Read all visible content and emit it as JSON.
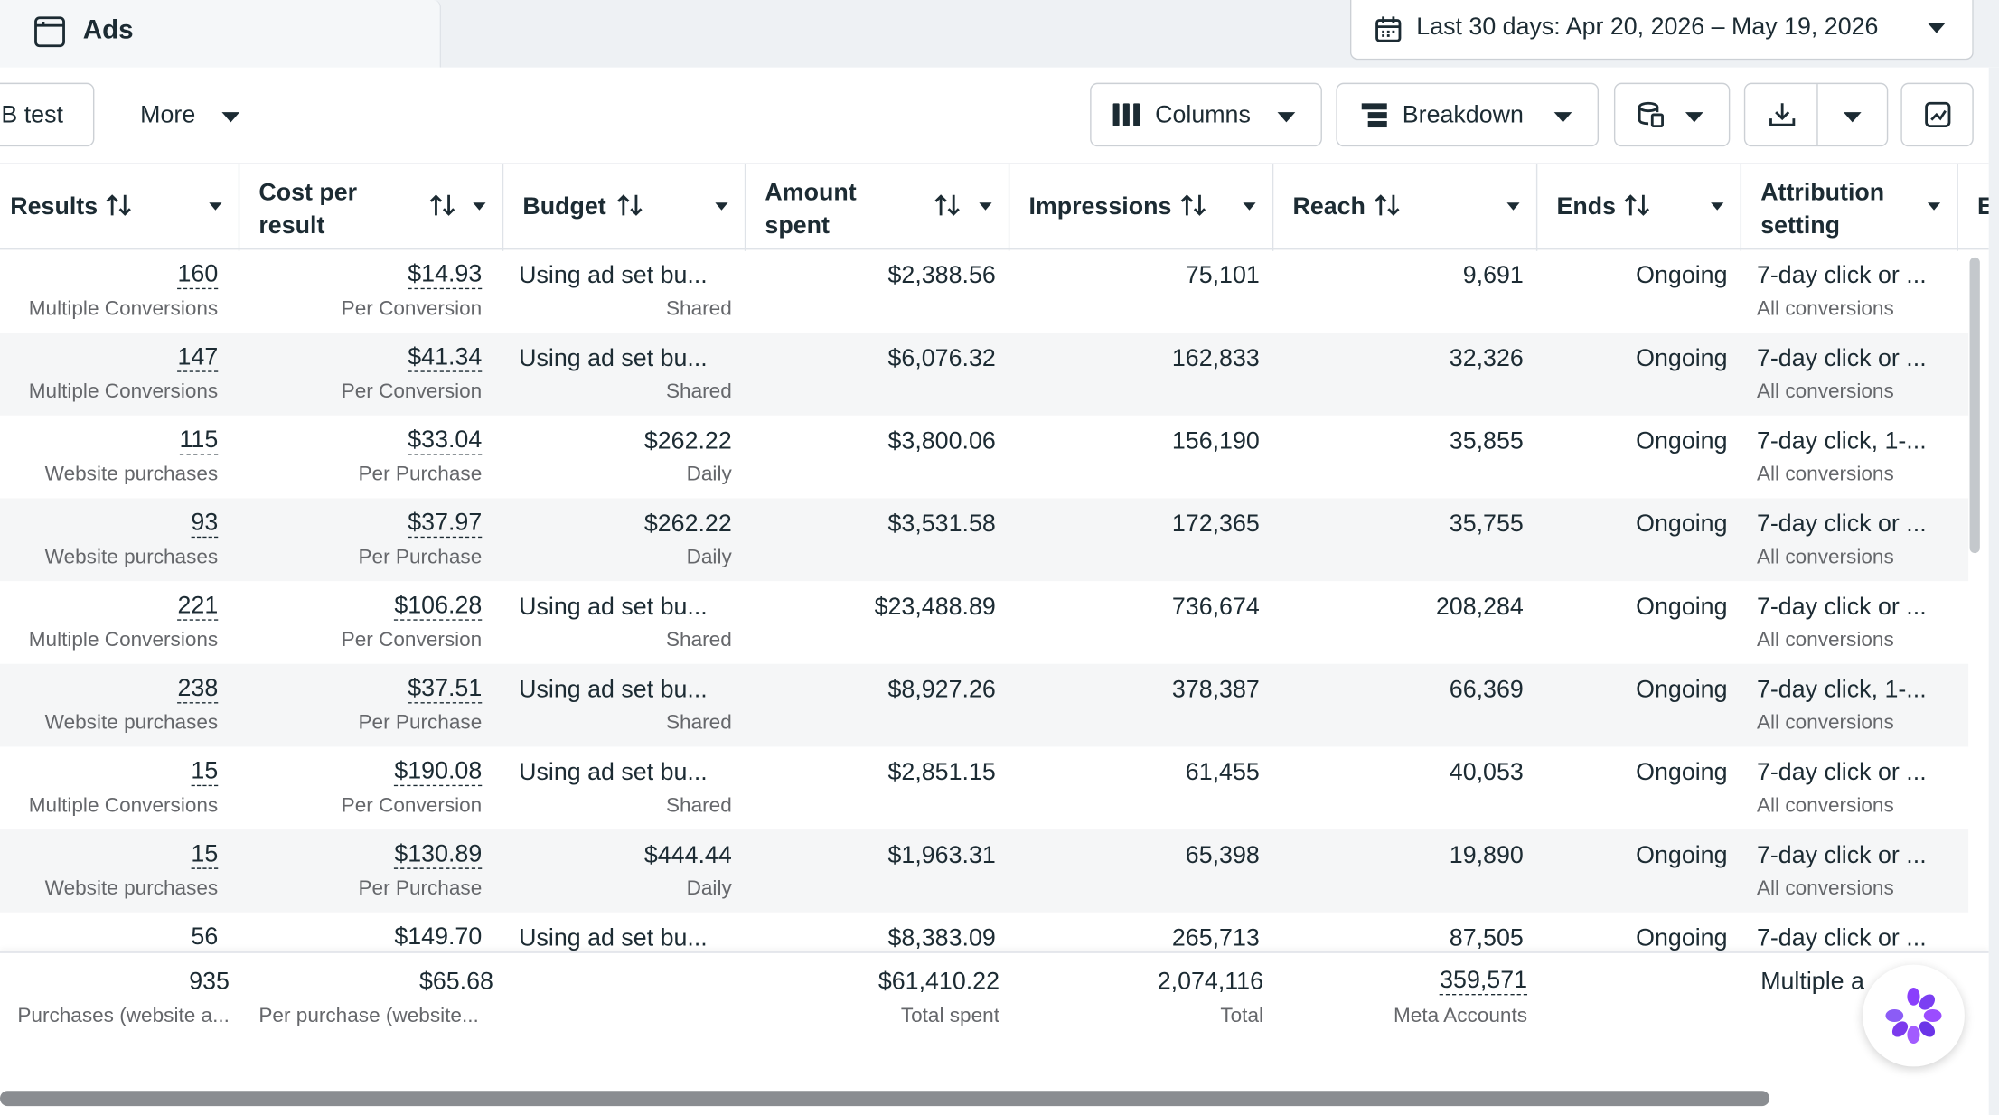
{
  "tab": {
    "label": "Ads",
    "icon": "ads-manager-icon"
  },
  "date_range": {
    "label": "Last 30 days: Apr 20, 2026 – May 19, 2026"
  },
  "toolbar": {
    "ab_test_label": "B test",
    "more_label": "More",
    "columns_label": "Columns",
    "breakdown_label": "Breakdown"
  },
  "columns": {
    "results": "Results",
    "cost_per_result_1": "Cost per",
    "cost_per_result_2": "result",
    "budget": "Budget",
    "amount_spent_1": "Amount",
    "amount_spent_2": "spent",
    "impressions": "Impressions",
    "reach": "Reach",
    "ends": "Ends",
    "attribution_1": "Attribution",
    "attribution_2": "setting",
    "next_partial": "E"
  },
  "rows": [
    {
      "results": "160",
      "results_sub": "Multiple Conversions",
      "cpr": "$14.93",
      "cpr_sub": "Per Conversion",
      "budget": "Using ad set bu...",
      "budget_sub": "Shared",
      "spent": "$2,388.56",
      "impressions": "75,101",
      "reach": "9,691",
      "ends": "Ongoing",
      "attr": "7-day click or ...",
      "attr_sub": "All conversions"
    },
    {
      "results": "147",
      "results_sub": "Multiple Conversions",
      "cpr": "$41.34",
      "cpr_sub": "Per Conversion",
      "budget": "Using ad set bu...",
      "budget_sub": "Shared",
      "spent": "$6,076.32",
      "impressions": "162,833",
      "reach": "32,326",
      "ends": "Ongoing",
      "attr": "7-day click or ...",
      "attr_sub": "All conversions"
    },
    {
      "results": "115",
      "results_sub": "Website purchases",
      "cpr": "$33.04",
      "cpr_sub": "Per Purchase",
      "budget": "$262.22",
      "budget_sub": "Daily",
      "spent": "$3,800.06",
      "impressions": "156,190",
      "reach": "35,855",
      "ends": "Ongoing",
      "attr": "7-day click, 1-...",
      "attr_sub": "All conversions"
    },
    {
      "results": "93",
      "results_sub": "Website purchases",
      "cpr": "$37.97",
      "cpr_sub": "Per Purchase",
      "budget": "$262.22",
      "budget_sub": "Daily",
      "spent": "$3,531.58",
      "impressions": "172,365",
      "reach": "35,755",
      "ends": "Ongoing",
      "attr": "7-day click or ...",
      "attr_sub": "All conversions"
    },
    {
      "results": "221",
      "results_sub": "Multiple Conversions",
      "cpr": "$106.28",
      "cpr_sub": "Per Conversion",
      "budget": "Using ad set bu...",
      "budget_sub": "Shared",
      "spent": "$23,488.89",
      "impressions": "736,674",
      "reach": "208,284",
      "ends": "Ongoing",
      "attr": "7-day click or ...",
      "attr_sub": "All conversions"
    },
    {
      "results": "238",
      "results_sub": "Website purchases",
      "cpr": "$37.51",
      "cpr_sub": "Per Purchase",
      "budget": "Using ad set bu...",
      "budget_sub": "Shared",
      "spent": "$8,927.26",
      "impressions": "378,387",
      "reach": "66,369",
      "ends": "Ongoing",
      "attr": "7-day click, 1-...",
      "attr_sub": "All conversions"
    },
    {
      "results": "15",
      "results_sub": "Multiple Conversions",
      "cpr": "$190.08",
      "cpr_sub": "Per Conversion",
      "budget": "Using ad set bu...",
      "budget_sub": "Shared",
      "spent": "$2,851.15",
      "impressions": "61,455",
      "reach": "40,053",
      "ends": "Ongoing",
      "attr": "7-day click or ...",
      "attr_sub": "All conversions"
    },
    {
      "results": "15",
      "results_sub": "Website purchases",
      "cpr": "$130.89",
      "cpr_sub": "Per Purchase",
      "budget": "$444.44",
      "budget_sub": "Daily",
      "spent": "$1,963.31",
      "impressions": "65,398",
      "reach": "19,890",
      "ends": "Ongoing",
      "attr": "7-day click or ...",
      "attr_sub": "All conversions"
    },
    {
      "results": "56",
      "results_sub": "",
      "cpr": "$149.70",
      "cpr_sub": "",
      "budget": "Using ad set bu...",
      "budget_sub": "",
      "spent": "$8,383.09",
      "impressions": "265,713",
      "reach": "87,505",
      "ends": "Ongoing",
      "attr": "7-day click or ...",
      "attr_sub": ""
    }
  ],
  "totals": {
    "results": "935",
    "results_sub": "Purchases (website a...",
    "cpr": "$65.68",
    "cpr_sub": "Per purchase (website...",
    "spent": "$61,410.22",
    "spent_sub": "Total spent",
    "impressions": "2,074,116",
    "impressions_sub": "Total",
    "reach": "359,571",
    "reach_sub": "Meta Accounts",
    "attr": "Multiple a"
  },
  "colors": {
    "text": "#1c2b33",
    "sub": "#65676b",
    "border": "#ccd0d5",
    "alt_row": "#f5f6f7"
  }
}
